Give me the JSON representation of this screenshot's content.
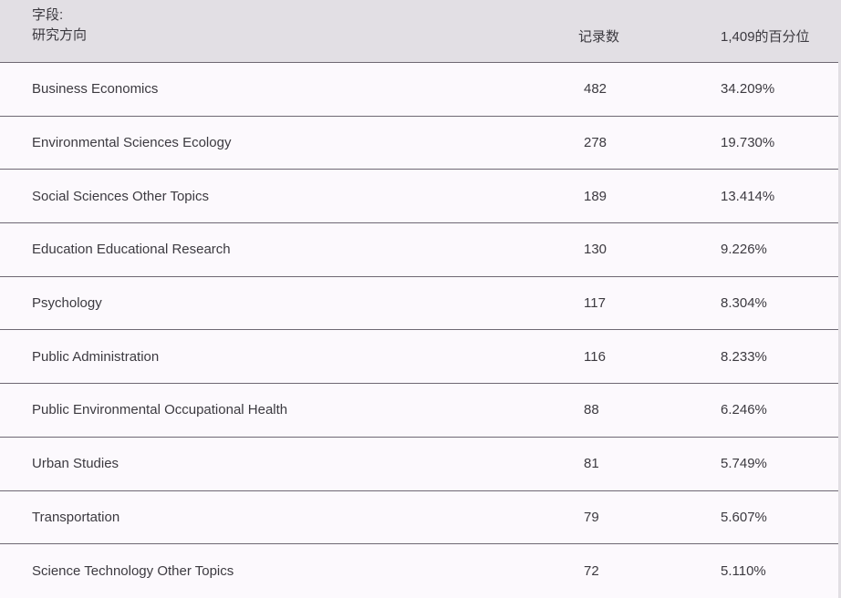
{
  "table": {
    "header": {
      "field_label": "字段:",
      "field_name": "研究方向",
      "records_label": "记录数",
      "percentile_label": "1,409的百分位"
    },
    "rows": [
      {
        "name": "Business Economics",
        "count": "482",
        "pct": "34.209%"
      },
      {
        "name": "Environmental Sciences Ecology",
        "count": "278",
        "pct": "19.730%"
      },
      {
        "name": "Social Sciences Other Topics",
        "count": "189",
        "pct": "13.414%"
      },
      {
        "name": "Education Educational Research",
        "count": "130",
        "pct": "9.226%"
      },
      {
        "name": "Psychology",
        "count": "117",
        "pct": "8.304%"
      },
      {
        "name": "Public Administration",
        "count": "116",
        "pct": "8.233%"
      },
      {
        "name": "Public Environmental Occupational Health",
        "count": "88",
        "pct": "6.246%"
      },
      {
        "name": "Urban Studies",
        "count": "81",
        "pct": "5.749%"
      },
      {
        "name": "Transportation",
        "count": "79",
        "pct": "5.607%"
      },
      {
        "name": "Science Technology Other Topics",
        "count": "72",
        "pct": "5.110%"
      }
    ],
    "colors": {
      "header_bg": "#e2dfe4",
      "row_bg": "#fcf9fd",
      "border": "#6e6873",
      "text": "#3c3a40"
    }
  }
}
